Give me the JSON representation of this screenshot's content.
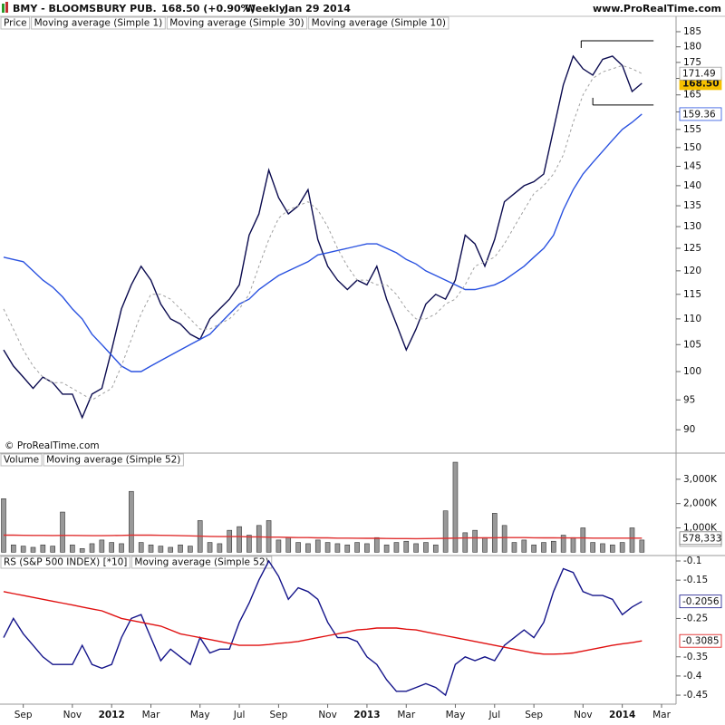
{
  "header": {
    "title": "BMY - BLOOMSBURY PUB.",
    "quote": "168.50 (+0.90%)",
    "period": "Weekly",
    "date": "Jan 29 2014",
    "site": "www.ProRealTime.com"
  },
  "chart_data": [
    {
      "type": "line",
      "legend_title": "Price",
      "annotation": "© ProRealTime.com",
      "yscale": "log",
      "ylim": [
        86.7,
        185.6
      ],
      "yticks": [
        90,
        95,
        100,
        105,
        110,
        115,
        120,
        125,
        130,
        135,
        140,
        145,
        150,
        155,
        160,
        165,
        170,
        175,
        180,
        185
      ],
      "box": [
        182,
        162
      ],
      "series": [
        {
          "name": "Moving average (Simple 1)",
          "color": "#0b0b4f",
          "label_fill": "#f5c000",
          "values": [
            104,
            101,
            99,
            97,
            99,
            98,
            96,
            96,
            92,
            96,
            97,
            104,
            112,
            117,
            121,
            118,
            113,
            110,
            109,
            107,
            106,
            110,
            112,
            114,
            117,
            128,
            133,
            144,
            137,
            133,
            135,
            139,
            127,
            121,
            118,
            116,
            118,
            117,
            121,
            114,
            109,
            104,
            108,
            113,
            115,
            114,
            118,
            128,
            126,
            121,
            127,
            136,
            138,
            140,
            141,
            143,
            155,
            168,
            177,
            173,
            171,
            176,
            177,
            174,
            166,
            168.5,
            null,
            null
          ],
          "value_labels": [
            null,
            null,
            null,
            null,
            null,
            null,
            null,
            null,
            null,
            null,
            null,
            null,
            null,
            null,
            null,
            null,
            null,
            null,
            null,
            null,
            null,
            null,
            null,
            null,
            null,
            null,
            null,
            null,
            null,
            null,
            null,
            null,
            null,
            null,
            null,
            null,
            null,
            null,
            null,
            null,
            null,
            null,
            null,
            null,
            null,
            null,
            null,
            null,
            null,
            null,
            null,
            null,
            null,
            null,
            null,
            null,
            null,
            null,
            null,
            null,
            null,
            null,
            null,
            null,
            null,
            "168.50",
            null,
            null
          ]
        },
        {
          "name": "Moving average (Simple 30)",
          "color": "#2a52e0",
          "values": [
            123,
            122.5,
            122,
            120,
            118,
            116.5,
            114.5,
            112,
            110,
            107,
            105,
            103,
            101,
            100,
            100,
            101,
            102,
            103,
            104,
            105,
            106,
            107,
            109,
            111,
            113,
            114,
            116,
            117.5,
            119,
            120,
            121,
            122,
            123.5,
            124,
            124.5,
            125,
            125.5,
            126,
            126,
            125,
            124,
            122.5,
            121.5,
            120,
            119,
            118,
            117,
            116,
            116,
            116.5,
            117,
            118,
            119.5,
            121,
            123,
            125,
            128,
            134,
            139,
            143,
            146,
            149,
            152,
            155,
            157,
            159.36,
            null,
            null
          ]
        },
        {
          "name": "Moving average (Simple 10)",
          "color": "#a0a0a0",
          "dash": true,
          "values": [
            112,
            108,
            104,
            101,
            99,
            98,
            98,
            97,
            96,
            95,
            96,
            97,
            101,
            106,
            111,
            115,
            115,
            114,
            112,
            110,
            108,
            108,
            109,
            110,
            112,
            115,
            121,
            127,
            132,
            134,
            135,
            136,
            134,
            130,
            125,
            121,
            118,
            118,
            117,
            117,
            115,
            112,
            110,
            110,
            111,
            113,
            114,
            117,
            121,
            122,
            123,
            126,
            130,
            134,
            138,
            140,
            143,
            148,
            157,
            165,
            170,
            172,
            173,
            174,
            173,
            171.49,
            null,
            null
          ]
        }
      ]
    },
    {
      "type": "bar",
      "ylim": [
        -100000,
        4000000
      ],
      "yticks": [
        {
          "value": 1000000,
          "label": "1,000K"
        },
        {
          "value": 2000000,
          "label": "2,000K"
        },
        {
          "value": 3000000,
          "label": "3,000K"
        }
      ],
      "series": [
        {
          "name": "Volume",
          "color": "#999999",
          "values": [
            2200000,
            300000,
            250000,
            200000,
            300000,
            250000,
            1650000,
            300000,
            150000,
            350000,
            500000,
            400000,
            350000,
            2500000,
            400000,
            300000,
            250000,
            200000,
            300000,
            250000,
            1300000,
            400000,
            350000,
            900000,
            1050000,
            700000,
            1100000,
            1300000,
            500000,
            600000,
            400000,
            350000,
            500000,
            400000,
            350000,
            300000,
            400000,
            350000,
            600000,
            300000,
            400000,
            450000,
            350000,
            400000,
            300000,
            1700000,
            3700000,
            800000,
            900000,
            600000,
            1600000,
            1100000,
            400000,
            500000,
            300000,
            400000,
            450000,
            700000,
            600000,
            1000000,
            400000,
            350000,
            300000,
            400000,
            1000000,
            500000,
            null,
            null
          ]
        },
        {
          "name": "Moving average (Simple 52)",
          "color": "#e03030",
          "type": "line",
          "label_color": "#777777",
          "values": [
            700000,
            700000,
            695000,
            690000,
            690000,
            685000,
            690000,
            690000,
            685000,
            680000,
            680000,
            685000,
            690000,
            700000,
            700000,
            700000,
            695000,
            690000,
            680000,
            670000,
            660000,
            650000,
            640000,
            640000,
            640000,
            630000,
            630000,
            620000,
            620000,
            610000,
            600000,
            600000,
            590000,
            590000,
            580000,
            580000,
            575000,
            570000,
            570000,
            565000,
            560000,
            560000,
            555000,
            560000,
            565000,
            570000,
            580000,
            585000,
            590000,
            590000,
            595000,
            600000,
            600000,
            600000,
            595000,
            590000,
            590000,
            585000,
            585000,
            585000,
            580000,
            580000,
            580000,
            578000,
            578000,
            578333,
            null,
            null
          ],
          "value_labels": [
            null,
            null,
            null,
            null,
            null,
            null,
            null,
            null,
            null,
            null,
            null,
            null,
            null,
            null,
            null,
            null,
            null,
            null,
            null,
            null,
            null,
            null,
            null,
            null,
            null,
            null,
            null,
            null,
            null,
            null,
            null,
            null,
            null,
            null,
            null,
            null,
            null,
            null,
            null,
            null,
            null,
            null,
            null,
            null,
            null,
            null,
            null,
            null,
            null,
            null,
            null,
            null,
            null,
            null,
            null,
            null,
            null,
            null,
            null,
            null,
            null,
            null,
            null,
            null,
            null,
            "578,333",
            null,
            null
          ]
        }
      ]
    },
    {
      "type": "line",
      "ylim": [
        -0.4735,
        -0.0882
      ],
      "yticks": [
        -0.1,
        -0.15,
        -0.25,
        -0.35,
        -0.4,
        -0.45
      ],
      "categories": [
        null,
        null,
        "Sep",
        null,
        null,
        null,
        null,
        "Nov",
        null,
        null,
        null,
        "2012",
        null,
        null,
        null,
        "Mar",
        null,
        null,
        null,
        null,
        "May",
        null,
        null,
        null,
        "Jul",
        null,
        null,
        null,
        "Sep",
        null,
        null,
        null,
        null,
        "Nov",
        null,
        null,
        null,
        "2013",
        null,
        null,
        null,
        "Mar",
        null,
        null,
        null,
        null,
        "May",
        null,
        null,
        null,
        "Jul",
        null,
        null,
        null,
        "Sep",
        null,
        null,
        null,
        null,
        "Nov",
        null,
        null,
        null,
        "2014",
        null,
        null,
        null,
        "Mar"
      ],
      "series": [
        {
          "name": "RS (S&P 500 INDEX) [*10]",
          "color": "#14148a",
          "values": [
            -0.3,
            -0.25,
            -0.29,
            -0.32,
            -0.35,
            -0.37,
            -0.37,
            -0.37,
            -0.32,
            -0.37,
            -0.38,
            -0.37,
            -0.3,
            -0.25,
            -0.24,
            -0.3,
            -0.36,
            -0.33,
            -0.35,
            -0.37,
            -0.3,
            -0.34,
            -0.33,
            -0.33,
            -0.26,
            -0.21,
            -0.15,
            -0.1,
            -0.14,
            -0.2,
            -0.17,
            -0.18,
            -0.2,
            -0.26,
            -0.3,
            -0.3,
            -0.31,
            -0.35,
            -0.37,
            -0.41,
            -0.44,
            -0.44,
            -0.43,
            -0.42,
            -0.43,
            -0.45,
            -0.37,
            -0.35,
            -0.36,
            -0.35,
            -0.36,
            -0.32,
            -0.3,
            -0.28,
            -0.3,
            -0.26,
            -0.18,
            -0.12,
            -0.13,
            -0.18,
            -0.19,
            -0.19,
            -0.2,
            -0.24,
            -0.22,
            -0.2056,
            null,
            null
          ]
        },
        {
          "name": "Moving average (Simple 52)",
          "color": "#e01010",
          "values": [
            -0.18,
            -0.185,
            -0.19,
            -0.195,
            -0.2,
            -0.205,
            -0.21,
            -0.215,
            -0.22,
            -0.225,
            -0.23,
            -0.24,
            -0.25,
            -0.255,
            -0.26,
            -0.265,
            -0.27,
            -0.28,
            -0.29,
            -0.295,
            -0.3,
            -0.305,
            -0.31,
            -0.315,
            -0.32,
            -0.32,
            -0.32,
            -0.318,
            -0.315,
            -0.313,
            -0.31,
            -0.305,
            -0.3,
            -0.295,
            -0.29,
            -0.285,
            -0.28,
            -0.278,
            -0.275,
            -0.275,
            -0.275,
            -0.278,
            -0.28,
            -0.285,
            -0.29,
            -0.295,
            -0.3,
            -0.305,
            -0.31,
            -0.315,
            -0.32,
            -0.325,
            -0.33,
            -0.335,
            -0.34,
            -0.343,
            -0.343,
            -0.342,
            -0.34,
            -0.335,
            -0.33,
            -0.325,
            -0.32,
            -0.316,
            -0.313,
            -0.3085,
            null,
            null
          ]
        }
      ]
    }
  ]
}
